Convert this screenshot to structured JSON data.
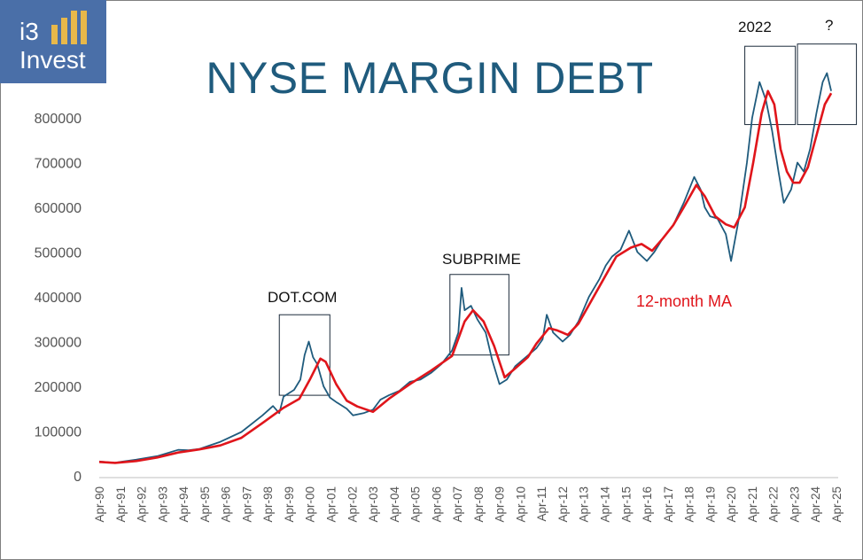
{
  "logo": {
    "line1": "i3",
    "line2": "Invest"
  },
  "chart_data": {
    "type": "line",
    "title": "NYSE MARGIN DEBT",
    "xlabel": "",
    "ylabel": "",
    "ylim": [
      0,
      850000
    ],
    "y_ticks": [
      0,
      100000,
      200000,
      300000,
      400000,
      500000,
      600000,
      700000,
      800000
    ],
    "y_tick_labels": [
      "0",
      "100000",
      "200000",
      "300000",
      "400000",
      "500000",
      "600000",
      "700000",
      "800000"
    ],
    "x_tick_labels": [
      "Apr-90",
      "Apr-91",
      "Apr-92",
      "Apr-93",
      "Apr-94",
      "Apr-95",
      "Apr-96",
      "Apr-97",
      "Apr-98",
      "Apr-99",
      "Apr-00",
      "Apr-01",
      "Apr-02",
      "Apr-03",
      "Apr-04",
      "Apr-05",
      "Apr-06",
      "Apr-07",
      "Apr-08",
      "Apr-09",
      "Apr-10",
      "Apr-11",
      "Apr-12",
      "Apr-13",
      "Apr-14",
      "Apr-15",
      "Apr-16",
      "Apr-17",
      "Apr-18",
      "Apr-19",
      "Apr-20",
      "Apr-21",
      "Apr-22",
      "Apr-23",
      "Apr-24",
      "Apr-25"
    ],
    "grid": false,
    "series": [
      {
        "name": "",
        "color": "#1f5b7d",
        "points": [
          [
            1990.25,
            32000
          ],
          [
            1991.0,
            29000
          ],
          [
            1991.25,
            31000
          ],
          [
            1992.0,
            36000
          ],
          [
            1993.0,
            44000
          ],
          [
            1994.0,
            58000
          ],
          [
            1994.5,
            57000
          ],
          [
            1995.0,
            60000
          ],
          [
            1996.0,
            76000
          ],
          [
            1997.0,
            98000
          ],
          [
            1998.0,
            135000
          ],
          [
            1998.5,
            156000
          ],
          [
            1998.8,
            140000
          ],
          [
            1999.0,
            177000
          ],
          [
            1999.5,
            192000
          ],
          [
            1999.8,
            215000
          ],
          [
            2000.0,
            270000
          ],
          [
            2000.2,
            300000
          ],
          [
            2000.4,
            265000
          ],
          [
            2000.6,
            250000
          ],
          [
            2000.9,
            200000
          ],
          [
            2001.2,
            175000
          ],
          [
            2001.5,
            165000
          ],
          [
            2002.0,
            150000
          ],
          [
            2002.3,
            135000
          ],
          [
            2002.8,
            140000
          ],
          [
            2003.25,
            148000
          ],
          [
            2003.6,
            170000
          ],
          [
            2004.0,
            180000
          ],
          [
            2004.5,
            190000
          ],
          [
            2005.0,
            210000
          ],
          [
            2005.5,
            215000
          ],
          [
            2006.0,
            230000
          ],
          [
            2006.5,
            250000
          ],
          [
            2007.0,
            280000
          ],
          [
            2007.3,
            320000
          ],
          [
            2007.45,
            420000
          ],
          [
            2007.6,
            370000
          ],
          [
            2007.9,
            380000
          ],
          [
            2008.2,
            350000
          ],
          [
            2008.6,
            320000
          ],
          [
            2008.9,
            260000
          ],
          [
            2009.25,
            205000
          ],
          [
            2009.6,
            215000
          ],
          [
            2010.0,
            245000
          ],
          [
            2010.5,
            265000
          ],
          [
            2011.0,
            285000
          ],
          [
            2011.3,
            305000
          ],
          [
            2011.5,
            360000
          ],
          [
            2011.8,
            320000
          ],
          [
            2012.25,
            300000
          ],
          [
            2012.6,
            315000
          ],
          [
            2013.0,
            345000
          ],
          [
            2013.5,
            400000
          ],
          [
            2014.0,
            440000
          ],
          [
            2014.3,
            470000
          ],
          [
            2014.6,
            490000
          ],
          [
            2015.0,
            505000
          ],
          [
            2015.4,
            548000
          ],
          [
            2015.8,
            500000
          ],
          [
            2016.25,
            480000
          ],
          [
            2016.6,
            500000
          ],
          [
            2017.0,
            530000
          ],
          [
            2017.5,
            560000
          ],
          [
            2018.0,
            610000
          ],
          [
            2018.5,
            668000
          ],
          [
            2018.8,
            640000
          ],
          [
            2019.0,
            600000
          ],
          [
            2019.25,
            580000
          ],
          [
            2019.6,
            575000
          ],
          [
            2020.0,
            540000
          ],
          [
            2020.25,
            480000
          ],
          [
            2020.6,
            570000
          ],
          [
            2021.0,
            700000
          ],
          [
            2021.25,
            800000
          ],
          [
            2021.6,
            880000
          ],
          [
            2021.9,
            840000
          ],
          [
            2022.2,
            770000
          ],
          [
            2022.5,
            680000
          ],
          [
            2022.75,
            610000
          ],
          [
            2023.1,
            640000
          ],
          [
            2023.4,
            700000
          ],
          [
            2023.7,
            680000
          ],
          [
            2024.0,
            730000
          ],
          [
            2024.3,
            810000
          ],
          [
            2024.6,
            880000
          ],
          [
            2024.8,
            900000
          ],
          [
            2025.0,
            860000
          ]
        ]
      },
      {
        "name": "12-month MA",
        "color": "#e0151b",
        "points": [
          [
            1990.25,
            31000
          ],
          [
            1991.0,
            29000
          ],
          [
            1992.0,
            33000
          ],
          [
            1993.0,
            41000
          ],
          [
            1994.0,
            52000
          ],
          [
            1995.0,
            59000
          ],
          [
            1996.0,
            68000
          ],
          [
            1997.0,
            85000
          ],
          [
            1998.0,
            118000
          ],
          [
            1999.0,
            152000
          ],
          [
            1999.75,
            172000
          ],
          [
            2000.25,
            215000
          ],
          [
            2000.75,
            262000
          ],
          [
            2001.0,
            255000
          ],
          [
            2001.5,
            205000
          ],
          [
            2002.0,
            168000
          ],
          [
            2002.5,
            155000
          ],
          [
            2003.25,
            143000
          ],
          [
            2004.0,
            172000
          ],
          [
            2005.0,
            205000
          ],
          [
            2006.0,
            235000
          ],
          [
            2007.0,
            268000
          ],
          [
            2007.6,
            345000
          ],
          [
            2008.0,
            370000
          ],
          [
            2008.5,
            345000
          ],
          [
            2009.0,
            290000
          ],
          [
            2009.5,
            220000
          ],
          [
            2010.0,
            240000
          ],
          [
            2010.6,
            265000
          ],
          [
            2011.0,
            295000
          ],
          [
            2011.6,
            330000
          ],
          [
            2012.0,
            325000
          ],
          [
            2012.5,
            315000
          ],
          [
            2013.0,
            340000
          ],
          [
            2013.6,
            390000
          ],
          [
            2014.2,
            440000
          ],
          [
            2014.8,
            490000
          ],
          [
            2015.5,
            510000
          ],
          [
            2016.0,
            518000
          ],
          [
            2016.5,
            503000
          ],
          [
            2017.0,
            530000
          ],
          [
            2017.5,
            560000
          ],
          [
            2018.0,
            600000
          ],
          [
            2018.6,
            650000
          ],
          [
            2019.0,
            625000
          ],
          [
            2019.5,
            580000
          ],
          [
            2020.0,
            562000
          ],
          [
            2020.4,
            555000
          ],
          [
            2020.9,
            600000
          ],
          [
            2021.3,
            700000
          ],
          [
            2021.7,
            810000
          ],
          [
            2022.0,
            860000
          ],
          [
            2022.3,
            830000
          ],
          [
            2022.6,
            730000
          ],
          [
            2022.9,
            680000
          ],
          [
            2023.2,
            655000
          ],
          [
            2023.5,
            655000
          ],
          [
            2023.9,
            690000
          ],
          [
            2024.3,
            760000
          ],
          [
            2024.7,
            830000
          ],
          [
            2025.0,
            855000
          ]
        ]
      }
    ],
    "annotations": [
      {
        "text": "DOT.COM",
        "box_x": [
          1998.8,
          2001.2
        ],
        "box_y": [
          180000,
          360000
        ]
      },
      {
        "text": "SUBPRIME",
        "box_x": [
          2006.9,
          2009.7
        ],
        "box_y": [
          270000,
          450000
        ]
      },
      {
        "text": "2022",
        "box_x": [
          2020.9,
          2023.3
        ],
        "box_y": [
          785000,
          960000
        ]
      },
      {
        "text": "?",
        "box_x": [
          2023.4,
          2026.2
        ],
        "box_y": [
          785000,
          965000
        ]
      }
    ],
    "series_label": "12-month MA"
  }
}
